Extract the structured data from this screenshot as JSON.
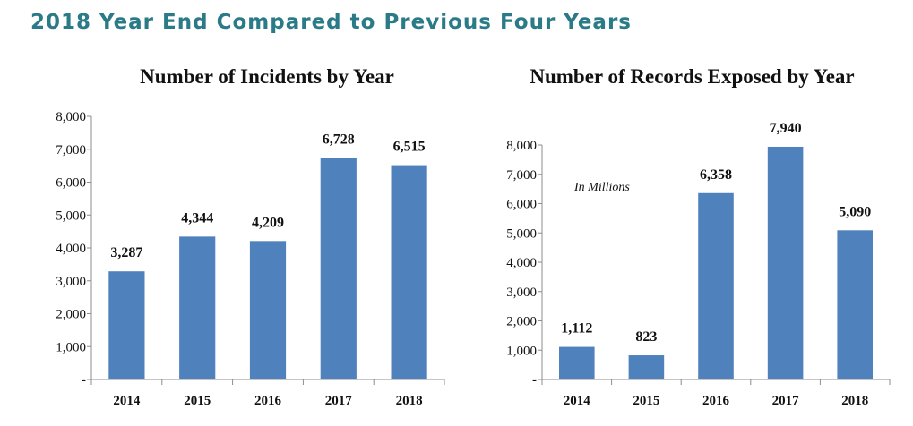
{
  "page_title": "2018 Year End Compared to Previous Four Years",
  "colors": {
    "title": "#2a7a87",
    "bar": "#4f81bd",
    "axis": "#8c8c8c",
    "text": "#111111"
  },
  "chart_data": [
    {
      "type": "bar",
      "title": "Number of Incidents by Year",
      "categories": [
        "2014",
        "2015",
        "2016",
        "2017",
        "2018"
      ],
      "values": [
        3287,
        4344,
        4209,
        6728,
        6515
      ],
      "data_labels": [
        "3,287",
        "4,344",
        "4,209",
        "6,728",
        "6,515"
      ],
      "ylim": [
        0,
        8000
      ],
      "yticks": [
        "-",
        "1,000",
        "2,000",
        "3,000",
        "4,000",
        "5,000",
        "6,000",
        "7,000",
        "8,000"
      ],
      "annotation": "",
      "grid": false,
      "legend": "none"
    },
    {
      "type": "bar",
      "title": "Number of Records Exposed by Year",
      "categories": [
        "2014",
        "2015",
        "2016",
        "2017",
        "2018"
      ],
      "values": [
        1112,
        823,
        6358,
        7940,
        5090
      ],
      "data_labels": [
        "1,112",
        "823",
        "6,358",
        "7,940",
        "5,090"
      ],
      "ylim": [
        0,
        8000
      ],
      "yticks": [
        "-",
        "1,000",
        "2,000",
        "3,000",
        "4,000",
        "5,000",
        "6,000",
        "7,000",
        "8,000"
      ],
      "annotation": "In Millions",
      "grid": false,
      "legend": "none"
    }
  ]
}
